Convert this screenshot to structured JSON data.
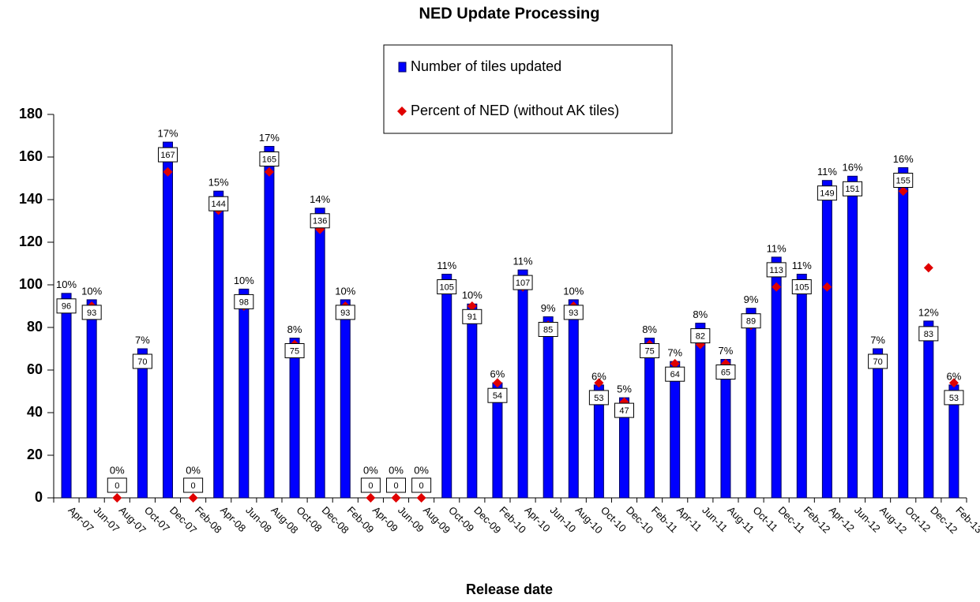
{
  "chart_data": {
    "type": "bar",
    "title": "NED Update Processing",
    "x_label": "Release date",
    "categories": [
      "Apr-07",
      "Jun-07",
      "Aug-07",
      "Oct-07",
      "Dec-07",
      "Feb-08",
      "Apr-08",
      "Jun-08",
      "Aug-08",
      "Oct-08",
      "Dec-08",
      "Feb-09",
      "Apr-09",
      "Jun-09",
      "Aug-09",
      "Oct-09",
      "Dec-09",
      "Feb-10",
      "Apr-10",
      "Jun-10",
      "Aug-10",
      "Oct-10",
      "Dec-10",
      "Feb-11",
      "Apr-11",
      "Jun-11",
      "Aug-11",
      "Oct-11",
      "Dec-11",
      "Feb-12",
      "Apr-12",
      "Jun-12",
      "Aug-12",
      "Oct-12",
      "Dec-12",
      "Feb-13"
    ],
    "series": [
      {
        "name": "Number of tiles updated",
        "color": "#0000ff",
        "values": [
          96,
          93,
          0,
          70,
          167,
          0,
          144,
          98,
          165,
          75,
          136,
          93,
          0,
          0,
          0,
          105,
          91,
          54,
          107,
          85,
          93,
          53,
          47,
          75,
          64,
          82,
          65,
          89,
          113,
          105,
          149,
          151,
          70,
          155,
          83,
          53
        ]
      },
      {
        "name": "Percent of NED (without AK tiles)",
        "color": "#e00000",
        "axis": "y2",
        "values": [
          10,
          10,
          0,
          7,
          17,
          0,
          15,
          10,
          17,
          8,
          14,
          10,
          0,
          0,
          0,
          11,
          10,
          6,
          11,
          9,
          10,
          6,
          5,
          8,
          7,
          8,
          7,
          9,
          11,
          11,
          11,
          16,
          7,
          16,
          12,
          6
        ],
        "value_labels": [
          "10%",
          "10%",
          "0%",
          "7%",
          "17%",
          "0%",
          "15%",
          "10%",
          "17%",
          "8%",
          "14%",
          "10%",
          "0%",
          "0%",
          "0%",
          "11%",
          "10%",
          "6%",
          "11%",
          "9%",
          "10%",
          "6%",
          "5%",
          "8%",
          "7%",
          "8%",
          "7%",
          "9%",
          "11%",
          "11%",
          "11%",
          "16%",
          "7%",
          "16%",
          "12%",
          "6%"
        ]
      }
    ],
    "ylim": [
      0,
      180
    ],
    "yticks": [
      0,
      20,
      40,
      60,
      80,
      100,
      120,
      140,
      160,
      180
    ],
    "y2lim": [
      0,
      20
    ],
    "legend": "top"
  }
}
